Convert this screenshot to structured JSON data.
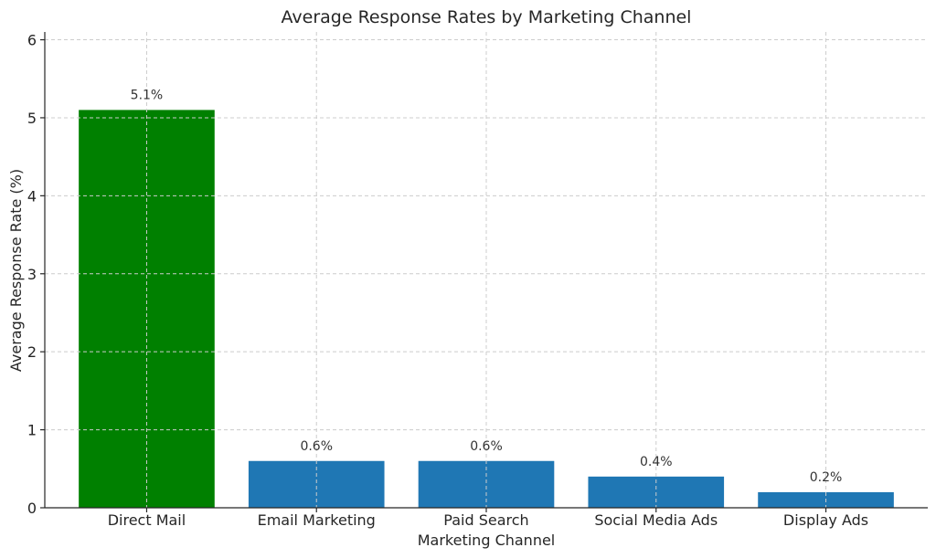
{
  "chart_data": {
    "type": "bar",
    "title": "Average Response Rates by Marketing Channel",
    "xlabel": "Marketing Channel",
    "ylabel": "Average Response Rate (%)",
    "categories": [
      "Direct Mail",
      "Email Marketing",
      "Paid Search",
      "Social Media Ads",
      "Display Ads"
    ],
    "values": [
      5.1,
      0.6,
      0.6,
      0.4,
      0.2
    ],
    "data_labels": [
      "5.1%",
      "0.6%",
      "0.6%",
      "0.4%",
      "0.2%"
    ],
    "bar_colors": [
      "#008000",
      "#1f77b4",
      "#1f77b4",
      "#1f77b4",
      "#1f77b4"
    ],
    "ylim": [
      0,
      6.1
    ],
    "yticks": [
      0,
      1,
      2,
      3,
      4,
      5,
      6
    ],
    "grid": true,
    "legend": "none"
  }
}
